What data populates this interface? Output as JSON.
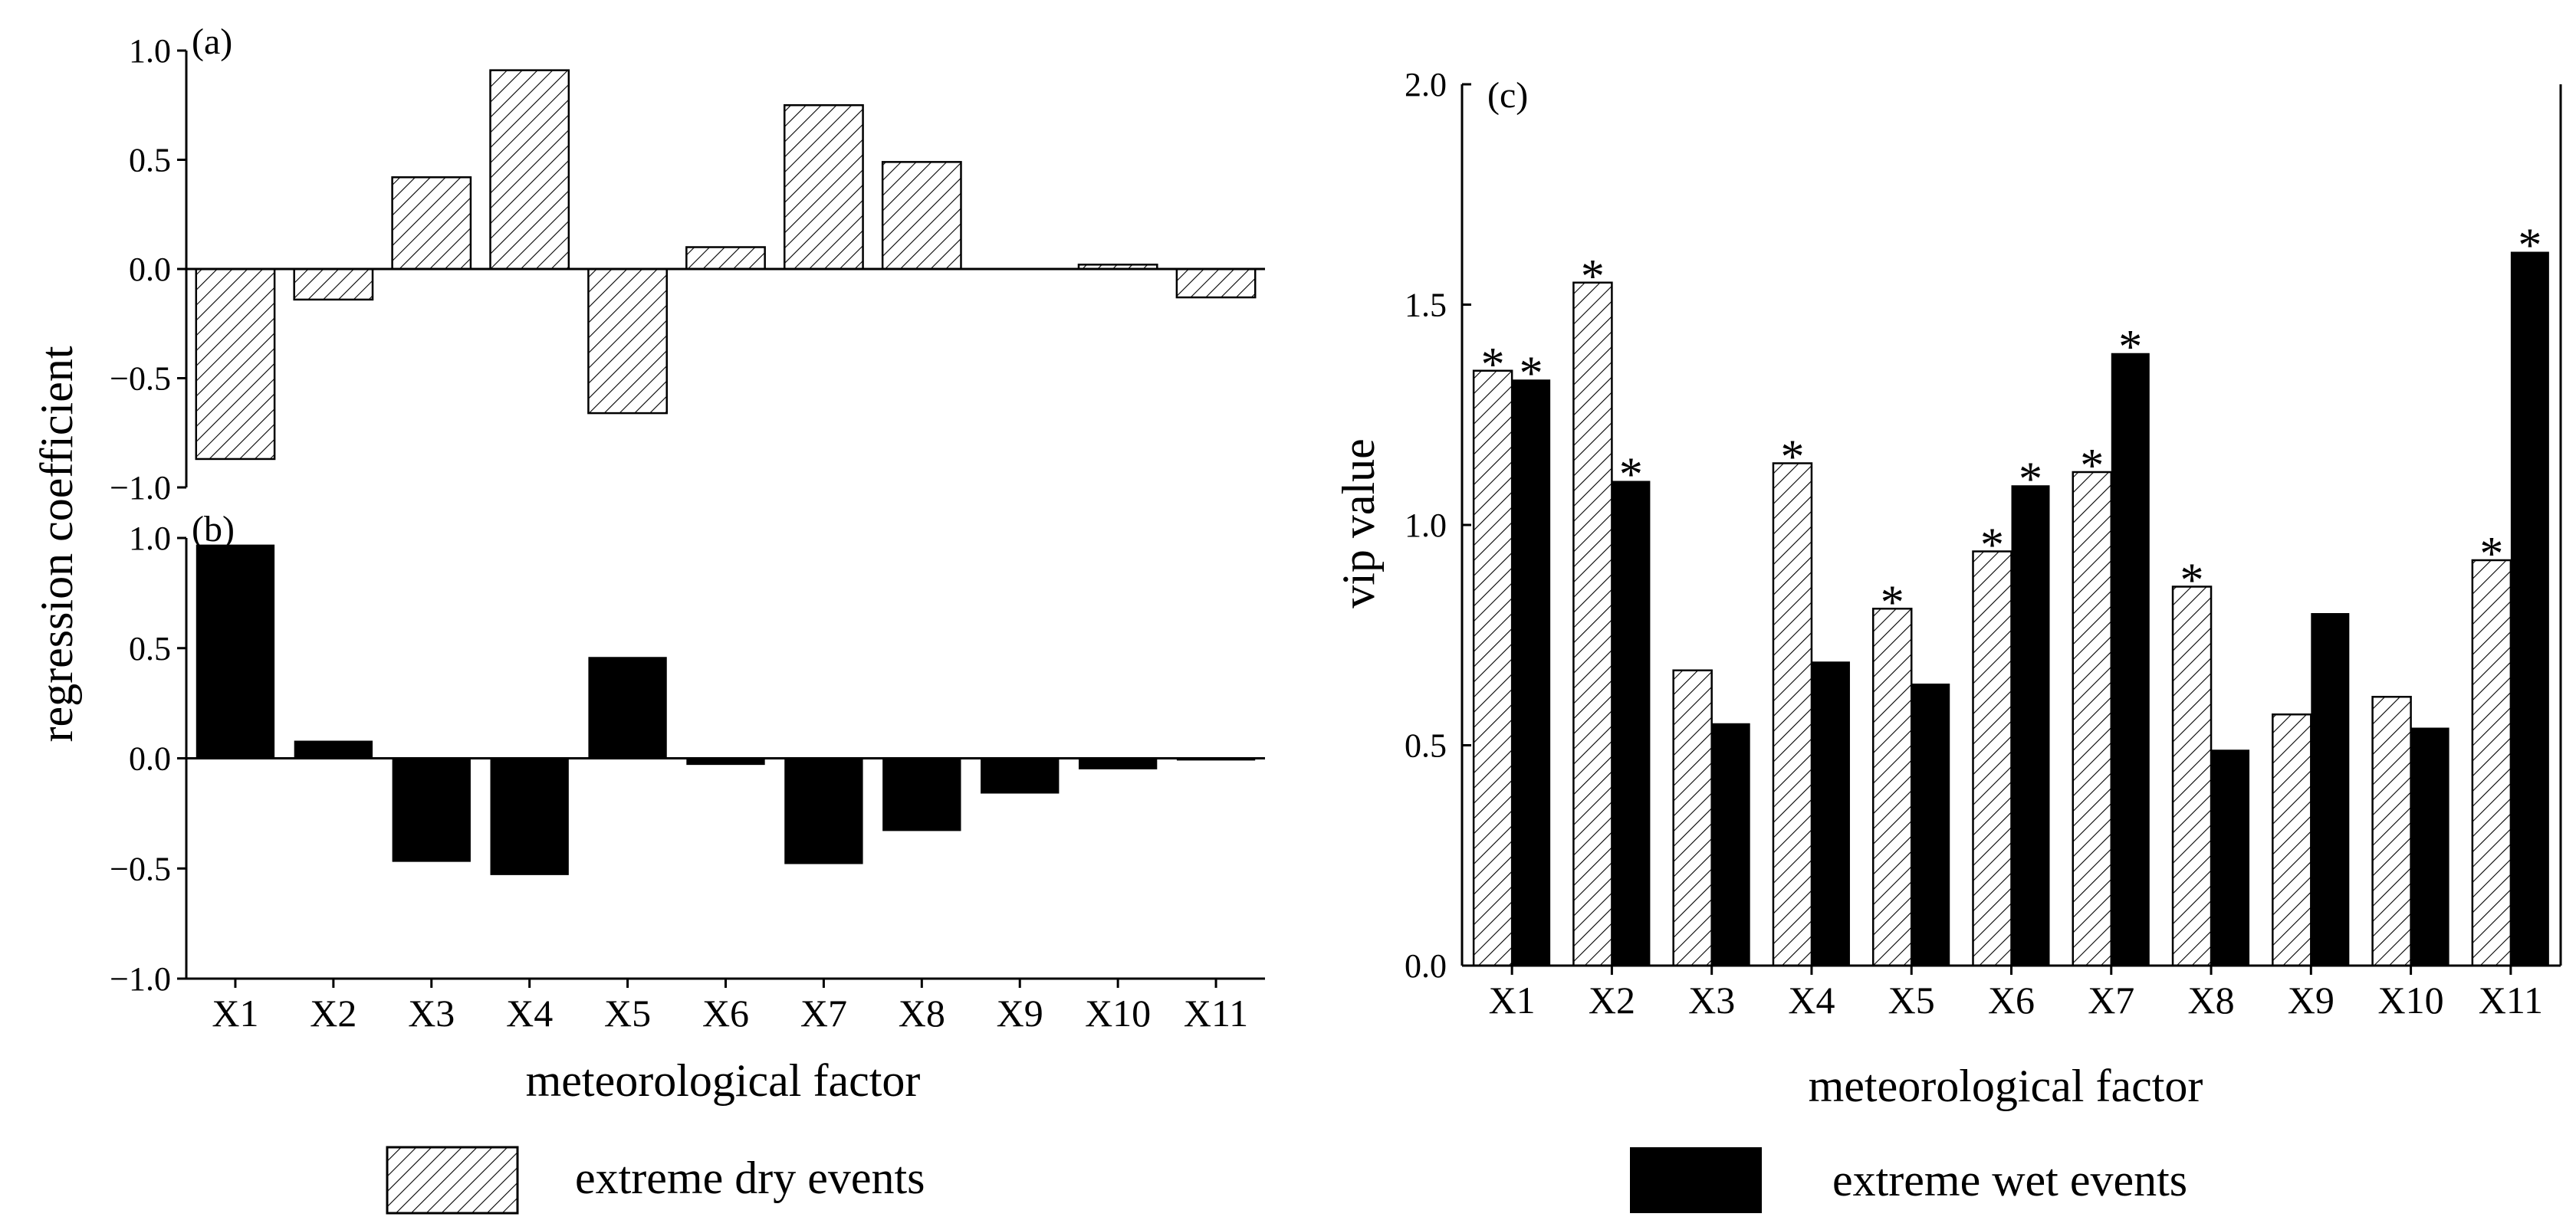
{
  "chart_data": [
    {
      "panel": "(a)",
      "type": "bar",
      "categories": [
        "X1",
        "X2",
        "X3",
        "X4",
        "X5",
        "X6",
        "X7",
        "X8",
        "X9",
        "X10",
        "X11"
      ],
      "series": [
        {
          "name": "extreme dry events",
          "values": [
            -0.87,
            -0.14,
            0.42,
            0.91,
            -0.66,
            0.1,
            0.75,
            0.49,
            0.0,
            0.02,
            -0.13
          ]
        }
      ],
      "ylim": [
        -1.0,
        1.0
      ],
      "yticks": [
        "1.0",
        "0.5",
        "0.0",
        "−0.5",
        "−1.0"
      ]
    },
    {
      "panel": "(b)",
      "type": "bar",
      "categories": [
        "X1",
        "X2",
        "X3",
        "X4",
        "X5",
        "X6",
        "X7",
        "X8",
        "X9",
        "X10",
        "X11"
      ],
      "series": [
        {
          "name": "extreme wet events",
          "values": [
            0.97,
            0.08,
            -0.47,
            -0.53,
            0.46,
            -0.03,
            -0.48,
            -0.33,
            -0.16,
            -0.05,
            -0.01
          ]
        }
      ],
      "ylim": [
        -1.0,
        1.0
      ],
      "yticks": [
        "1.0",
        "0.5",
        "0.0",
        "−0.5",
        "−1.0"
      ]
    },
    {
      "panel": "(c)",
      "type": "bar",
      "categories": [
        "X1",
        "X2",
        "X3",
        "X4",
        "X5",
        "X6",
        "X7",
        "X8",
        "X9",
        "X10",
        "X11"
      ],
      "series": [
        {
          "name": "extreme dry events",
          "values": [
            1.35,
            1.55,
            0.67,
            1.14,
            0.81,
            0.94,
            1.12,
            0.86,
            0.57,
            0.61,
            0.92
          ],
          "significant": [
            true,
            true,
            false,
            true,
            true,
            true,
            true,
            true,
            false,
            false,
            true
          ]
        },
        {
          "name": "extreme wet events",
          "values": [
            1.33,
            1.1,
            0.55,
            0.69,
            0.64,
            1.09,
            1.39,
            0.49,
            0.8,
            0.54,
            1.62
          ],
          "significant": [
            true,
            true,
            false,
            false,
            false,
            true,
            true,
            false,
            false,
            false,
            true
          ]
        }
      ],
      "significance_marker": "*",
      "ylim": [
        0.0,
        2.0
      ],
      "yticks": [
        "0.0",
        "0.5",
        "1.0",
        "1.5",
        "2.0"
      ],
      "ylabel": "vip value",
      "xlabel": "meteorological factor"
    }
  ],
  "left_panel": {
    "ylabel": "regression coefficient",
    "xlabel": "meteorological factor"
  },
  "legend": {
    "dry_label": "extreme dry events",
    "wet_label": "extreme wet events"
  },
  "colors": {
    "wet_fill": "#000000",
    "dry_hatch": "#000000",
    "background": "#ffffff"
  }
}
